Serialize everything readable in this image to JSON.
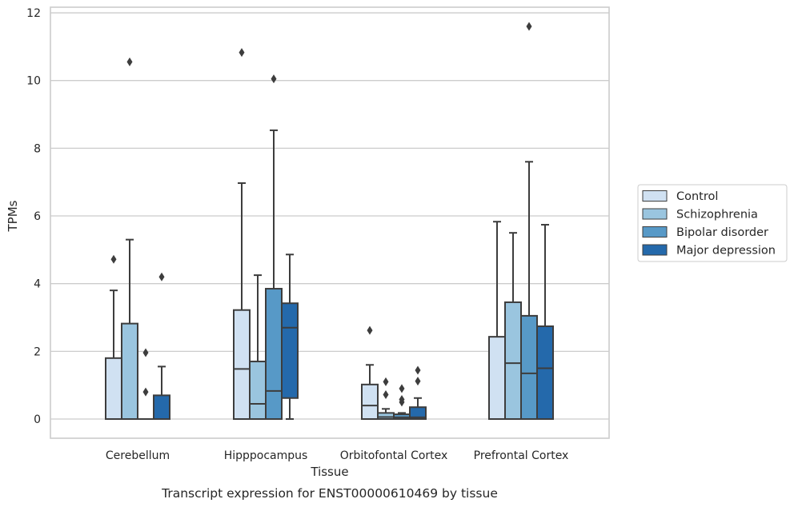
{
  "chart_data": {
    "type": "box",
    "title": "Transcript expression for ENST00000610469 by tissue",
    "xlabel": "Tissue",
    "ylabel": "TPMs",
    "ylim": [
      -0.55,
      12.2
    ],
    "yticks": [
      0,
      2,
      4,
      6,
      8,
      10,
      12
    ],
    "grid": true,
    "legend_position": "right",
    "categories": [
      "Cerebellum",
      "Hipppocampus",
      "Orbitofontal Cortex",
      "Prefrontal Cortex"
    ],
    "series": [
      {
        "name": "Control",
        "color": "#d0e1f2",
        "boxes": [
          {
            "q1": 0,
            "median": 0,
            "q3": 1.8,
            "whisker_low": 0,
            "whisker_high": 3.8,
            "outliers": [
              4.72
            ]
          },
          {
            "q1": 0,
            "median": 1.48,
            "q3": 3.22,
            "whisker_low": 0,
            "whisker_high": 6.97,
            "outliers": [
              10.83
            ]
          },
          {
            "q1": 0,
            "median": 0.4,
            "q3": 1.02,
            "whisker_low": 0,
            "whisker_high": 1.6,
            "outliers": [
              2.62
            ]
          },
          {
            "q1": 0,
            "median": 0,
            "q3": 2.43,
            "whisker_low": 0,
            "whisker_high": 5.83,
            "outliers": []
          }
        ]
      },
      {
        "name": "Schizophrenia",
        "color": "#9ac5df",
        "boxes": [
          {
            "q1": 0,
            "median": 0,
            "q3": 2.82,
            "whisker_low": 0,
            "whisker_high": 5.3,
            "outliers": [
              10.55
            ]
          },
          {
            "q1": 0,
            "median": 0.45,
            "q3": 1.7,
            "whisker_low": 0,
            "whisker_high": 4.25,
            "outliers": []
          },
          {
            "q1": 0,
            "median": 0.06,
            "q3": 0.18,
            "whisker_low": 0,
            "whisker_high": 0.3,
            "outliers": [
              0.72,
              1.1
            ]
          },
          {
            "q1": 0,
            "median": 1.65,
            "q3": 3.45,
            "whisker_low": 0,
            "whisker_high": 5.5,
            "outliers": []
          }
        ]
      },
      {
        "name": "Bipolar disorder",
        "color": "#5799c7",
        "boxes": [
          {
            "q1": 0,
            "median": 0,
            "q3": 0,
            "whisker_low": 0,
            "whisker_high": 0,
            "outliers": [
              0.8,
              1.96
            ]
          },
          {
            "q1": 0,
            "median": 0.83,
            "q3": 3.85,
            "whisker_low": 0,
            "whisker_high": 8.53,
            "outliers": [
              10.05
            ]
          },
          {
            "q1": 0,
            "median": 0.05,
            "q3": 0.14,
            "whisker_low": 0,
            "whisker_high": 0.18,
            "outliers": [
              0.5,
              0.58,
              0.9
            ]
          },
          {
            "q1": 0,
            "median": 1.35,
            "q3": 3.05,
            "whisker_low": 0,
            "whisker_high": 7.6,
            "outliers": [
              11.6
            ]
          }
        ]
      },
      {
        "name": "Major depression",
        "color": "#2469ab",
        "boxes": [
          {
            "q1": 0,
            "median": 0,
            "q3": 0.7,
            "whisker_low": 0,
            "whisker_high": 1.55,
            "outliers": [
              4.2
            ]
          },
          {
            "q1": 0.62,
            "median": 2.7,
            "q3": 3.42,
            "whisker_low": 0,
            "whisker_high": 4.86,
            "outliers": []
          },
          {
            "q1": 0,
            "median": 0.05,
            "q3": 0.35,
            "whisker_low": 0,
            "whisker_high": 0.62,
            "outliers": [
              1.12,
              1.44
            ]
          },
          {
            "q1": 0,
            "median": 1.5,
            "q3": 2.74,
            "whisker_low": 0,
            "whisker_high": 5.74,
            "outliers": []
          }
        ]
      }
    ]
  }
}
